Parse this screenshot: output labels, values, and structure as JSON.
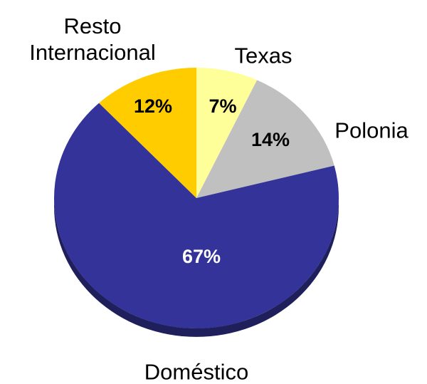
{
  "chart_data": {
    "type": "pie",
    "categories": [
      "Texas",
      "Polonia",
      "Doméstico",
      "Resto Internacional"
    ],
    "values": [
      7,
      14,
      67,
      12
    ],
    "value_labels": [
      "7%",
      "14%",
      "67%",
      "12%"
    ],
    "colors": [
      "#FFFF99",
      "#C0C0C0",
      "#333399",
      "#FFCC00"
    ],
    "label_colors": [
      "#000000",
      "#000000",
      "#FFFFFF",
      "#000000"
    ]
  }
}
